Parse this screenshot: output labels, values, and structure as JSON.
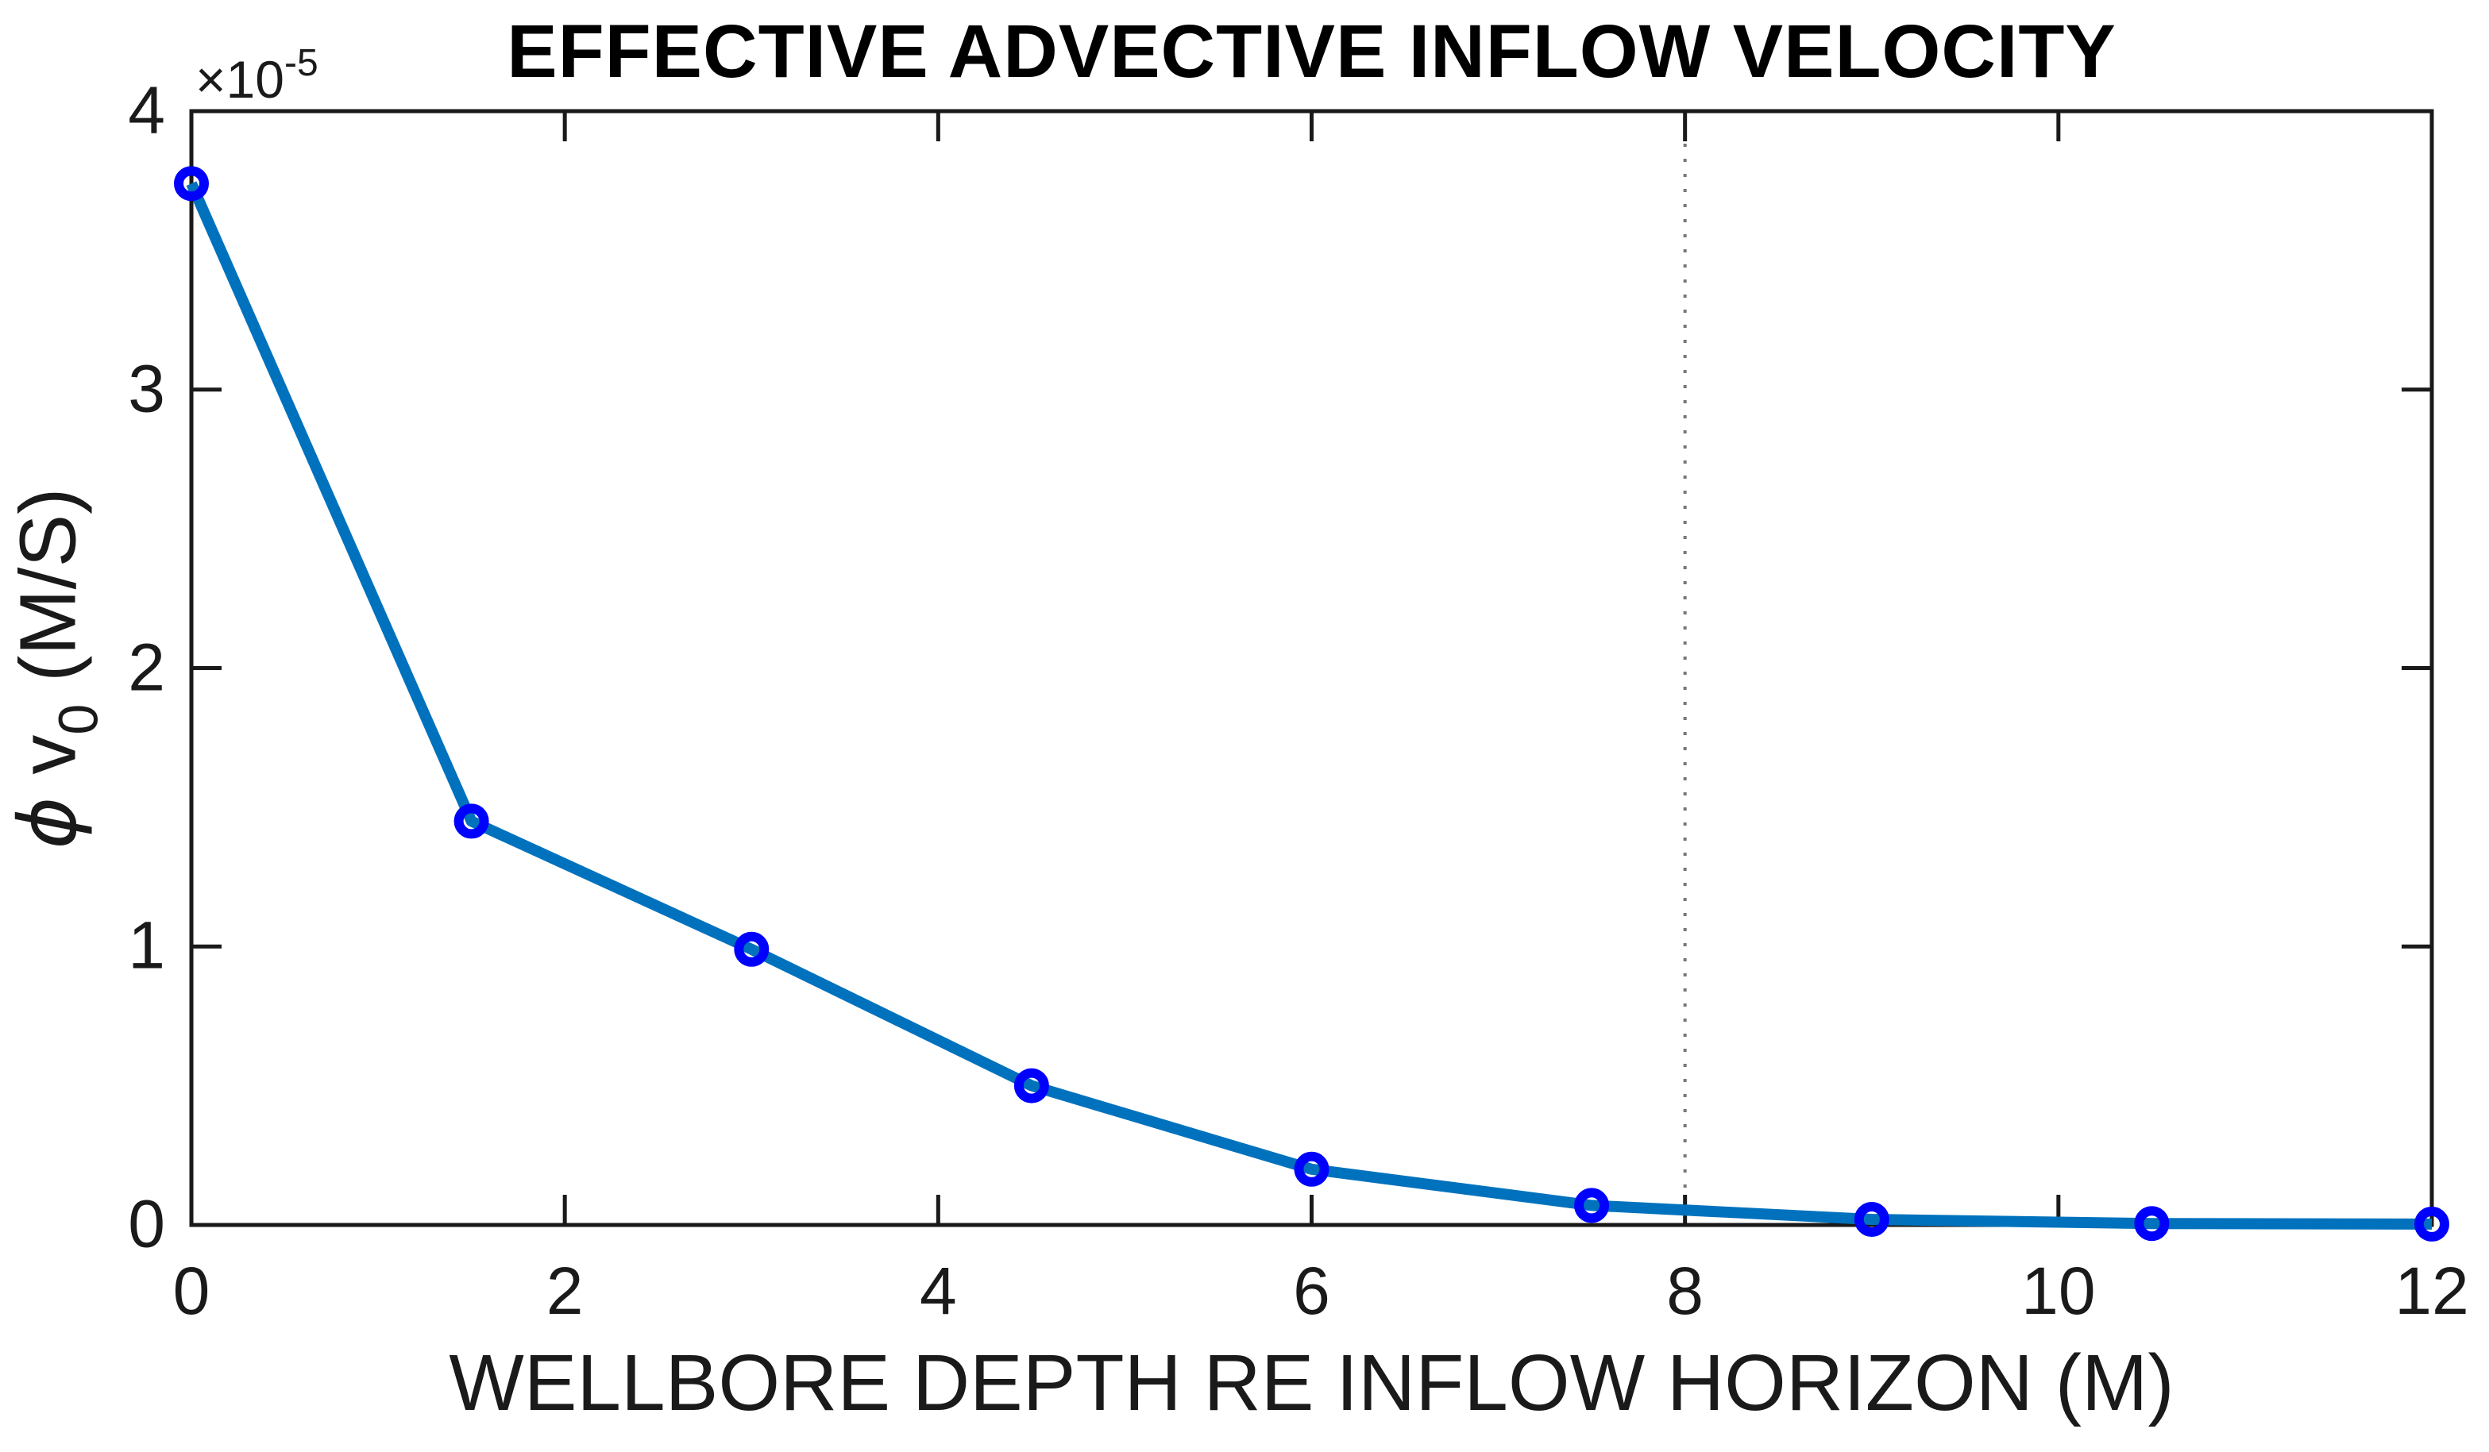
{
  "chart_data": {
    "type": "line",
    "title": "EFFECTIVE ADVECTIVE INFLOW VELOCITY",
    "xlabel": "WELLBORE DEPTH RE INFLOW HORIZON (M)",
    "ylabel": {
      "phi": "ϕ",
      "v": "v",
      "sub": "0",
      "units": "(M/S)"
    },
    "y_scale_label": {
      "base": "×10",
      "exp": "-5"
    },
    "x": [
      0,
      1.5,
      3,
      4.5,
      6,
      7.5,
      9,
      10.5,
      12
    ],
    "y": [
      3.74,
      1.45,
      0.99,
      0.5,
      0.2,
      0.07,
      0.02,
      0.005,
      0.003
    ],
    "y_multiplier": 1e-05,
    "xlim": [
      0,
      12
    ],
    "ylim": [
      0,
      4
    ],
    "xticks": [
      0,
      2,
      4,
      6,
      8,
      10,
      12
    ],
    "yticks": [
      0,
      1,
      2,
      3,
      4
    ],
    "xtick_labels": [
      "0",
      "2",
      "4",
      "6",
      "8",
      "10",
      "12"
    ],
    "ytick_labels": [
      "0",
      "1",
      "2",
      "3",
      "4"
    ],
    "grid_x_dotted": [
      8
    ],
    "legend": null,
    "box": true,
    "colors": {
      "line": "#0072BD",
      "marker_edge": "#0000FF",
      "axis": "#1a1a1a",
      "grid_dotted": "#777777",
      "title": "#000000",
      "background": "#ffffff"
    },
    "style": {
      "line_width": 14,
      "marker": "o",
      "marker_outer_radius": 22,
      "marker_ring_width": 12,
      "axis_line_width": 5,
      "tick_length": 38,
      "ticks_direction": "in"
    }
  }
}
